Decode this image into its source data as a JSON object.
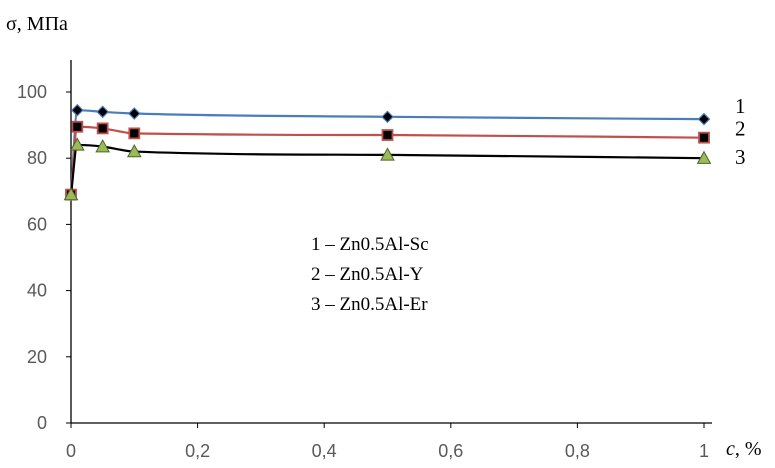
{
  "chart_data": {
    "type": "line",
    "ylabel": "σ, МПа",
    "xlabel": "c, %",
    "xlabel_var": "c",
    "xlabel_unit": ", %",
    "xlim": [
      0,
      1
    ],
    "ylim": [
      0,
      100
    ],
    "x_ticks": [
      "0",
      "0,2",
      "0,4",
      "0,6",
      "0,8",
      "1"
    ],
    "y_ticks": [
      "0",
      "20",
      "40",
      "60",
      "80",
      "100"
    ],
    "x_tick_values": [
      0,
      0.2,
      0.4,
      0.6,
      0.8,
      1
    ],
    "y_tick_values": [
      0,
      20,
      40,
      60,
      80,
      100
    ],
    "grid": false,
    "series": [
      {
        "name": "1 – Zn0.5Al-Sc",
        "label": "1",
        "line_color": "#4a7ebb",
        "marker": "diamond",
        "marker_fill": "#000000",
        "x": [
          0,
          0.01,
          0.05,
          0.1,
          0.5,
          1
        ],
        "y": [
          69,
          94.5,
          94,
          93.5,
          92.5,
          91.8
        ]
      },
      {
        "name": "2 – Zn0.5Al-Y",
        "label": "2",
        "line_color": "#c0504d",
        "marker": "square",
        "marker_fill": "#000000",
        "marker_stroke": "#c0504d",
        "x": [
          0,
          0.01,
          0.05,
          0.1,
          0.5,
          1
        ],
        "y": [
          69,
          89.5,
          89,
          87.5,
          87,
          86.2
        ]
      },
      {
        "name": "3 – Zn0.5Al-Er",
        "label": "3",
        "line_color": "#000000",
        "marker": "triangle",
        "marker_fill": "#9bbb59",
        "x": [
          0,
          0.01,
          0.05,
          0.1,
          0.5,
          1
        ],
        "y": [
          69,
          84,
          83.5,
          82,
          81,
          80
        ]
      }
    ],
    "legend": [
      "1 – Zn0.5Al-Sc",
      "2 – Zn0.5Al-Y",
      "3 – Zn0.5Al-Er"
    ],
    "legend_position": "center"
  }
}
